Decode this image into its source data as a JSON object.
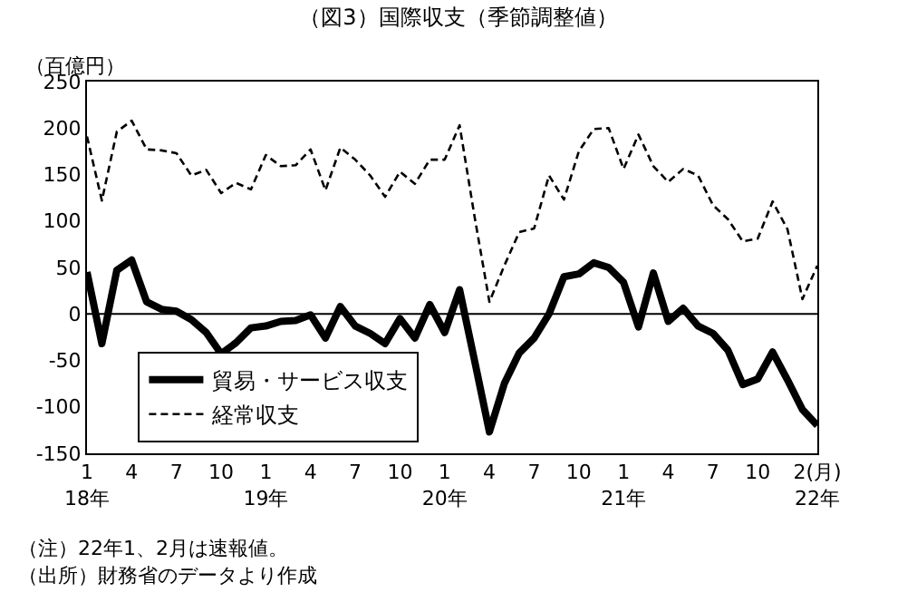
{
  "chart_data": {
    "type": "line",
    "title": "（図3）国際収支（季節調整値）",
    "ylabel": "（百億円）",
    "categories": [
      "1\n18年",
      null,
      null,
      "4",
      null,
      null,
      "7",
      null,
      null,
      "10",
      null,
      null,
      "1\n19年",
      null,
      null,
      "4",
      null,
      null,
      "7",
      null,
      null,
      "10",
      null,
      null,
      "1\n20年",
      null,
      null,
      "4",
      null,
      null,
      "7",
      null,
      null,
      "10",
      null,
      null,
      "1\n21年",
      null,
      null,
      "4",
      null,
      null,
      "7",
      null,
      null,
      "10",
      null,
      null,
      null,
      "2(月)\n22年"
    ],
    "series": [
      {
        "name": "貿易・サービス収支",
        "color": "#000000",
        "line_style": "solid",
        "values": [
          45,
          -32,
          47,
          58,
          13,
          5,
          3,
          -6,
          -20,
          -43,
          -31,
          -15,
          -13,
          -8,
          -7,
          -1,
          -26,
          8,
          -13,
          -21,
          -32,
          -5,
          -26,
          10,
          -20,
          26,
          -50,
          -127,
          -75,
          -42,
          -26,
          0,
          40,
          43,
          55,
          50,
          34,
          -14,
          44,
          -8,
          6,
          -13,
          -21,
          -39,
          -76,
          -70,
          -41,
          -71,
          -103,
          -120
        ]
      },
      {
        "name": "経常収支",
        "color": "#000000",
        "line_style": "dashed",
        "values": [
          191,
          122,
          196,
          208,
          177,
          176,
          173,
          149,
          155,
          130,
          141,
          134,
          171,
          159,
          160,
          177,
          133,
          179,
          166,
          149,
          126,
          153,
          140,
          166,
          166,
          203,
          105,
          13,
          52,
          88,
          92,
          149,
          123,
          175,
          199,
          200,
          156,
          193,
          159,
          142,
          156,
          149,
          117,
          102,
          78,
          81,
          121,
          91,
          16,
          52
        ]
      }
    ],
    "ylim": [
      -150,
      250
    ],
    "yticks": [
      -150,
      -100,
      -50,
      0,
      50,
      100,
      150,
      200,
      250
    ],
    "ref_lines": [
      {
        "axis": "y",
        "value": 0,
        "color": "#000000"
      }
    ],
    "grid": false,
    "legend": "bottom left",
    "marker": "none",
    "annotations": [
      "（注）22年1、2月は速報値。",
      "（出所）財務省のデータより作成"
    ]
  }
}
